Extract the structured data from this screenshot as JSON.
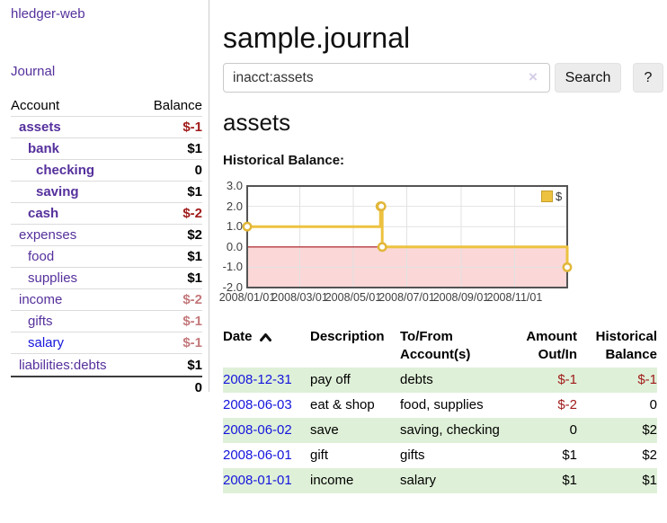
{
  "app": {
    "title": "hledger-web"
  },
  "sidebar": {
    "nav_journal": "Journal",
    "account_header": "Account",
    "balance_header": "Balance",
    "accounts": [
      {
        "name": "assets",
        "balance": "$-1"
      },
      {
        "name": "bank",
        "balance": "$1"
      },
      {
        "name": "checking",
        "balance": "0"
      },
      {
        "name": "saving",
        "balance": "$1"
      },
      {
        "name": "cash",
        "balance": "$-2"
      },
      {
        "name": "expenses",
        "balance": "$2"
      },
      {
        "name": "food",
        "balance": "$1"
      },
      {
        "name": "supplies",
        "balance": "$1"
      },
      {
        "name": "income",
        "balance": "$-2"
      },
      {
        "name": "gifts",
        "balance": "$-1"
      },
      {
        "name": "salary",
        "balance": "$-1"
      },
      {
        "name": "liabilities:debts",
        "balance": "$1"
      }
    ],
    "total": "0"
  },
  "header": {
    "title": "sample.journal"
  },
  "search": {
    "value": "inacct:assets",
    "clear_label": "×",
    "button": "Search",
    "help_button": "?"
  },
  "account_page": {
    "heading": "assets",
    "chart_label": "Historical Balance:"
  },
  "chart_data": {
    "type": "line",
    "step": true,
    "title": "Historical Balance:",
    "series": [
      {
        "name": "$",
        "color": "#edc240",
        "points": [
          [
            "2008-01-01",
            1
          ],
          [
            "2008-06-01",
            2
          ],
          [
            "2008-06-02",
            2
          ],
          [
            "2008-06-03",
            0
          ],
          [
            "2008-12-31",
            -1
          ]
        ]
      }
    ],
    "ylim": [
      -2,
      3
    ],
    "yticks": [
      3,
      2,
      1,
      0,
      -1,
      -2
    ],
    "ytick_labels": [
      "3.0",
      "2.0",
      "1.0",
      "0.0",
      "-1.0",
      "-2.0"
    ],
    "xticks": [
      "2008/01/01",
      "2008/03/01",
      "2008/05/01",
      "2008/07/01",
      "2008/09/01",
      "2008/11/01"
    ],
    "xrange": [
      "2008-01-01",
      "2008-12-31"
    ],
    "grid": true,
    "legend_position": "top-right",
    "negative_fill": "#fbd7d7",
    "zero_line_color": "#a51218",
    "gridline_color": "#e2e2e2",
    "border_color": "#545454"
  },
  "register": {
    "headers": {
      "date": "Date",
      "description": "Description",
      "tofrom_line1": "To/From",
      "tofrom_line2": "Account(s)",
      "amount_line1": "Amount",
      "amount_line2": "Out/In",
      "balance_line1": "Historical",
      "balance_line2": "Balance"
    },
    "rows": [
      {
        "date": "2008-12-31",
        "description": "pay off",
        "accounts": "debts",
        "amount": "$-1",
        "balance": "$-1"
      },
      {
        "date": "2008-06-03",
        "description": "eat & shop",
        "accounts": "food, supplies",
        "amount": "$-2",
        "balance": "0"
      },
      {
        "date": "2008-06-02",
        "description": "save",
        "accounts": "saving, checking",
        "amount": "0",
        "balance": "$2"
      },
      {
        "date": "2008-06-01",
        "description": "gift",
        "accounts": "gifts",
        "amount": "$1",
        "balance": "$2"
      },
      {
        "date": "2008-01-01",
        "description": "income",
        "accounts": "salary",
        "amount": "$1",
        "balance": "$1"
      }
    ]
  }
}
